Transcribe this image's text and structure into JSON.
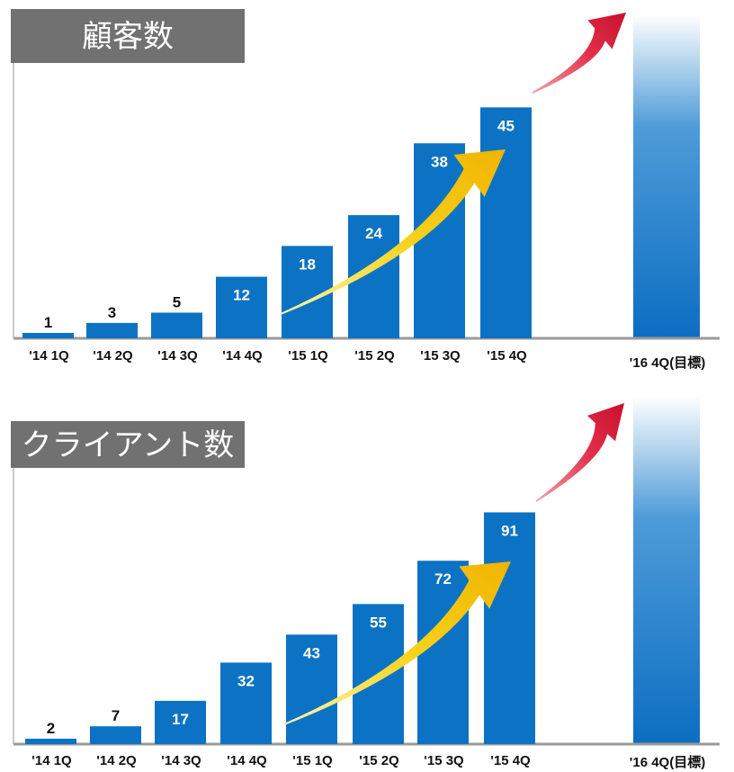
{
  "chart_data": [
    {
      "type": "bar",
      "title": "顧客数",
      "categories": [
        "'14  1Q",
        "'14  2Q",
        "'14  3Q",
        "'14  4Q",
        "'15  1Q",
        "'15  2Q",
        "'15  3Q",
        "'15  4Q"
      ],
      "values": [
        1,
        3,
        5,
        12,
        18,
        24,
        38,
        45
      ],
      "target_label": "'16 4Q(目標)",
      "target_value": null,
      "ylim": [
        0,
        54
      ],
      "grid": false,
      "legend": false
    },
    {
      "type": "bar",
      "title": "クライアント数",
      "categories": [
        "'14  1Q",
        "'14  2Q",
        "'14  3Q",
        "'14  4Q",
        "'15  1Q",
        "'15  2Q",
        "'15  3Q",
        "'15  4Q"
      ],
      "values": [
        2,
        7,
        17,
        32,
        43,
        55,
        72,
        91
      ],
      "target_label": "'16 4Q(目標)",
      "target_value": null,
      "ylim": [
        0,
        112
      ],
      "grid": false,
      "legend": false
    }
  ],
  "colors": {
    "bar": "#0c73c4",
    "bar_gradient_top": "#ffffff",
    "title_box": "#717171",
    "title_text": "#ffffff",
    "axis": "#9a9a9a",
    "yellow_arrow": "#f5c400",
    "red_arrow": "#d8203a"
  }
}
